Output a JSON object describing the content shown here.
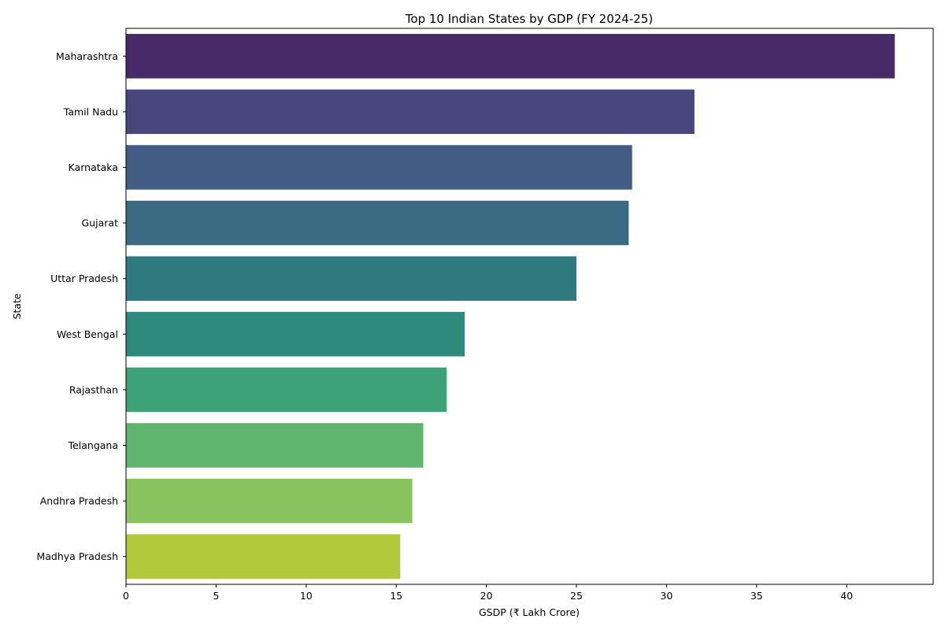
{
  "chart_data": {
    "type": "bar",
    "orientation": "horizontal",
    "title": "Top 10 Indian States by GDP (FY 2024-25)",
    "xlabel": "GSDP (₹ Lakh Crore)",
    "ylabel": "State",
    "categories": [
      "Maharashtra",
      "Tamil Nadu",
      "Karnataka",
      "Gujarat",
      "Uttar Pradesh",
      "West Bengal",
      "Rajasthan",
      "Telangana",
      "Andhra Pradesh",
      "Madhya Pradesh"
    ],
    "values": [
      42.67,
      31.55,
      28.09,
      27.9,
      25.0,
      18.8,
      17.8,
      16.5,
      15.89,
      15.22
    ],
    "colors": [
      "#482a68",
      "#47467f",
      "#425c85",
      "#3a6b83",
      "#2f7a7e",
      "#2d8a7c",
      "#3da376",
      "#60b56e",
      "#89c35d",
      "#b1c93a"
    ],
    "xlim": [
      0,
      44.8
    ],
    "xticks": [
      "0",
      "5",
      "10",
      "15",
      "20",
      "25",
      "30",
      "35",
      "40"
    ],
    "grid": false,
    "legend": "none"
  }
}
